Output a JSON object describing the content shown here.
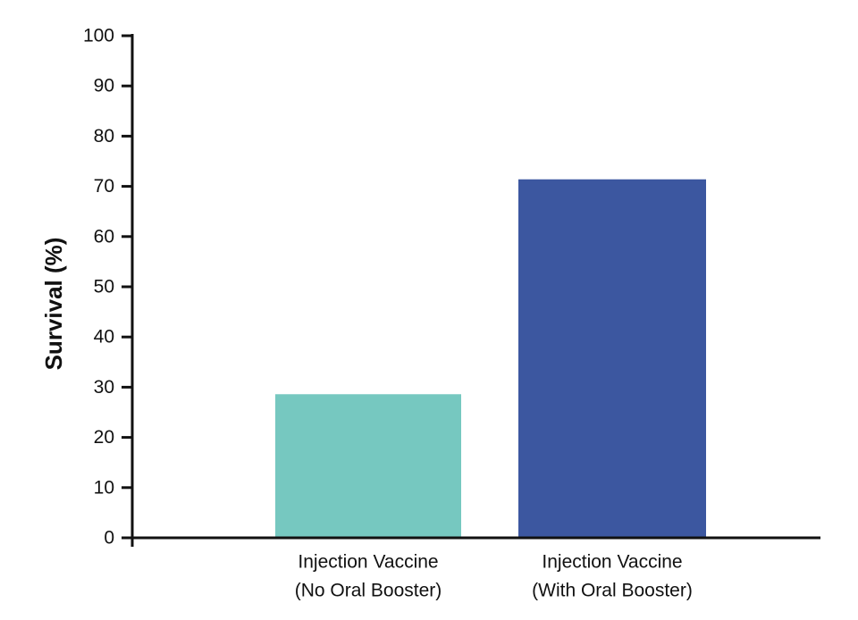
{
  "chart_data": {
    "type": "bar",
    "y_label": "Survival (%)",
    "categories": [
      [
        "Injection Vaccine",
        "(No Oral Booster)"
      ],
      [
        "Injection Vaccine",
        "(With Oral Booster)"
      ]
    ],
    "values": [
      28.6,
      71.4
    ],
    "colors": [
      "#76c8c0",
      "#3c57a0"
    ],
    "ylim": [
      0,
      100
    ],
    "yticks": [
      0,
      10,
      20,
      30,
      40,
      50,
      60,
      70,
      80,
      90,
      100
    ]
  }
}
